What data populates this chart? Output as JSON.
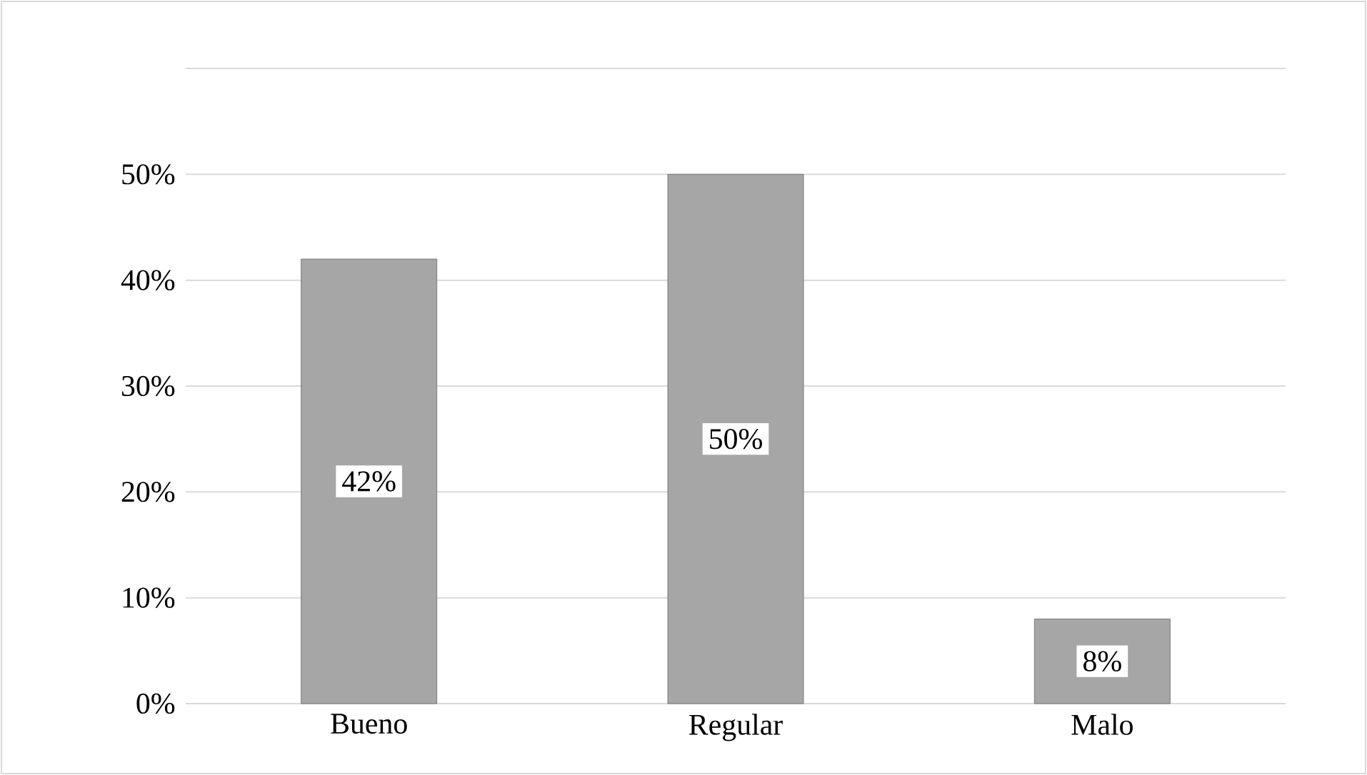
{
  "chart_data": {
    "type": "bar",
    "categories": [
      "Bueno",
      "Regular",
      "Malo"
    ],
    "values": [
      42,
      50,
      8
    ],
    "color": "#a6a6a6",
    "value_labels": [
      "42%",
      "50%",
      "8%"
    ],
    "ylim": [
      0,
      60
    ],
    "yticks": [
      {
        "value": 0,
        "label": "0%"
      },
      {
        "value": 10,
        "label": "10%"
      },
      {
        "value": 20,
        "label": "20%"
      },
      {
        "value": 30,
        "label": "30%"
      },
      {
        "value": 40,
        "label": "40%"
      },
      {
        "value": 50,
        "label": "50%"
      },
      {
        "value": 60,
        "label": null
      }
    ],
    "grid": "y"
  }
}
